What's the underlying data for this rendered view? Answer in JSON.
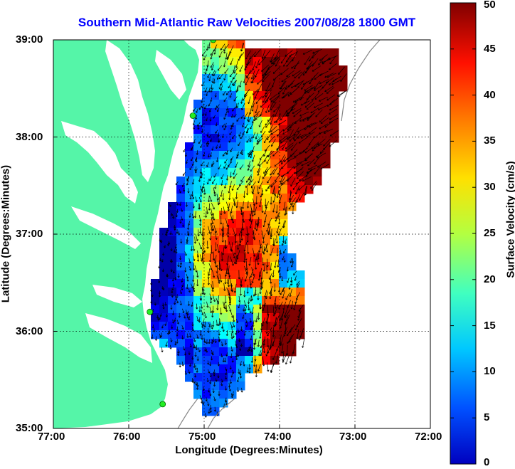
{
  "title": "Southern Mid-Atlantic Raw Velocities 2007/08/28 1800 GMT",
  "xlabel": "Longitude (Degrees:Minutes)",
  "ylabel": "Latitude (Degrees:Minutes)",
  "colorbar_label": "Surface Velocity (cm/s)",
  "colors": {
    "land": "#55f5a8",
    "title": "#0000ff",
    "station": "#22ee22"
  },
  "chart_data": {
    "type": "heatmap",
    "x_ticks": [
      "77:00",
      "76:00",
      "75:00",
      "74:00",
      "73:00",
      "72:00"
    ],
    "y_ticks": [
      "39:00",
      "38:00",
      "37:00",
      "36:00",
      "35:00"
    ],
    "colorbar_ticks": [
      "50",
      "45",
      "40",
      "35",
      "30",
      "25",
      "20",
      "15",
      "10",
      "5",
      "0"
    ],
    "xlim": [
      -77,
      -72
    ],
    "ylim": [
      35,
      39
    ],
    "clim": [
      0,
      50
    ],
    "grid": true,
    "colormap": "jet",
    "stations": [
      {
        "lon": -74.88,
        "lat": 39.0
      },
      {
        "lon": -75.15,
        "lat": 38.22
      },
      {
        "lon": -75.72,
        "lat": 36.2
      },
      {
        "lon": -75.55,
        "lat": 35.25
      }
    ]
  }
}
